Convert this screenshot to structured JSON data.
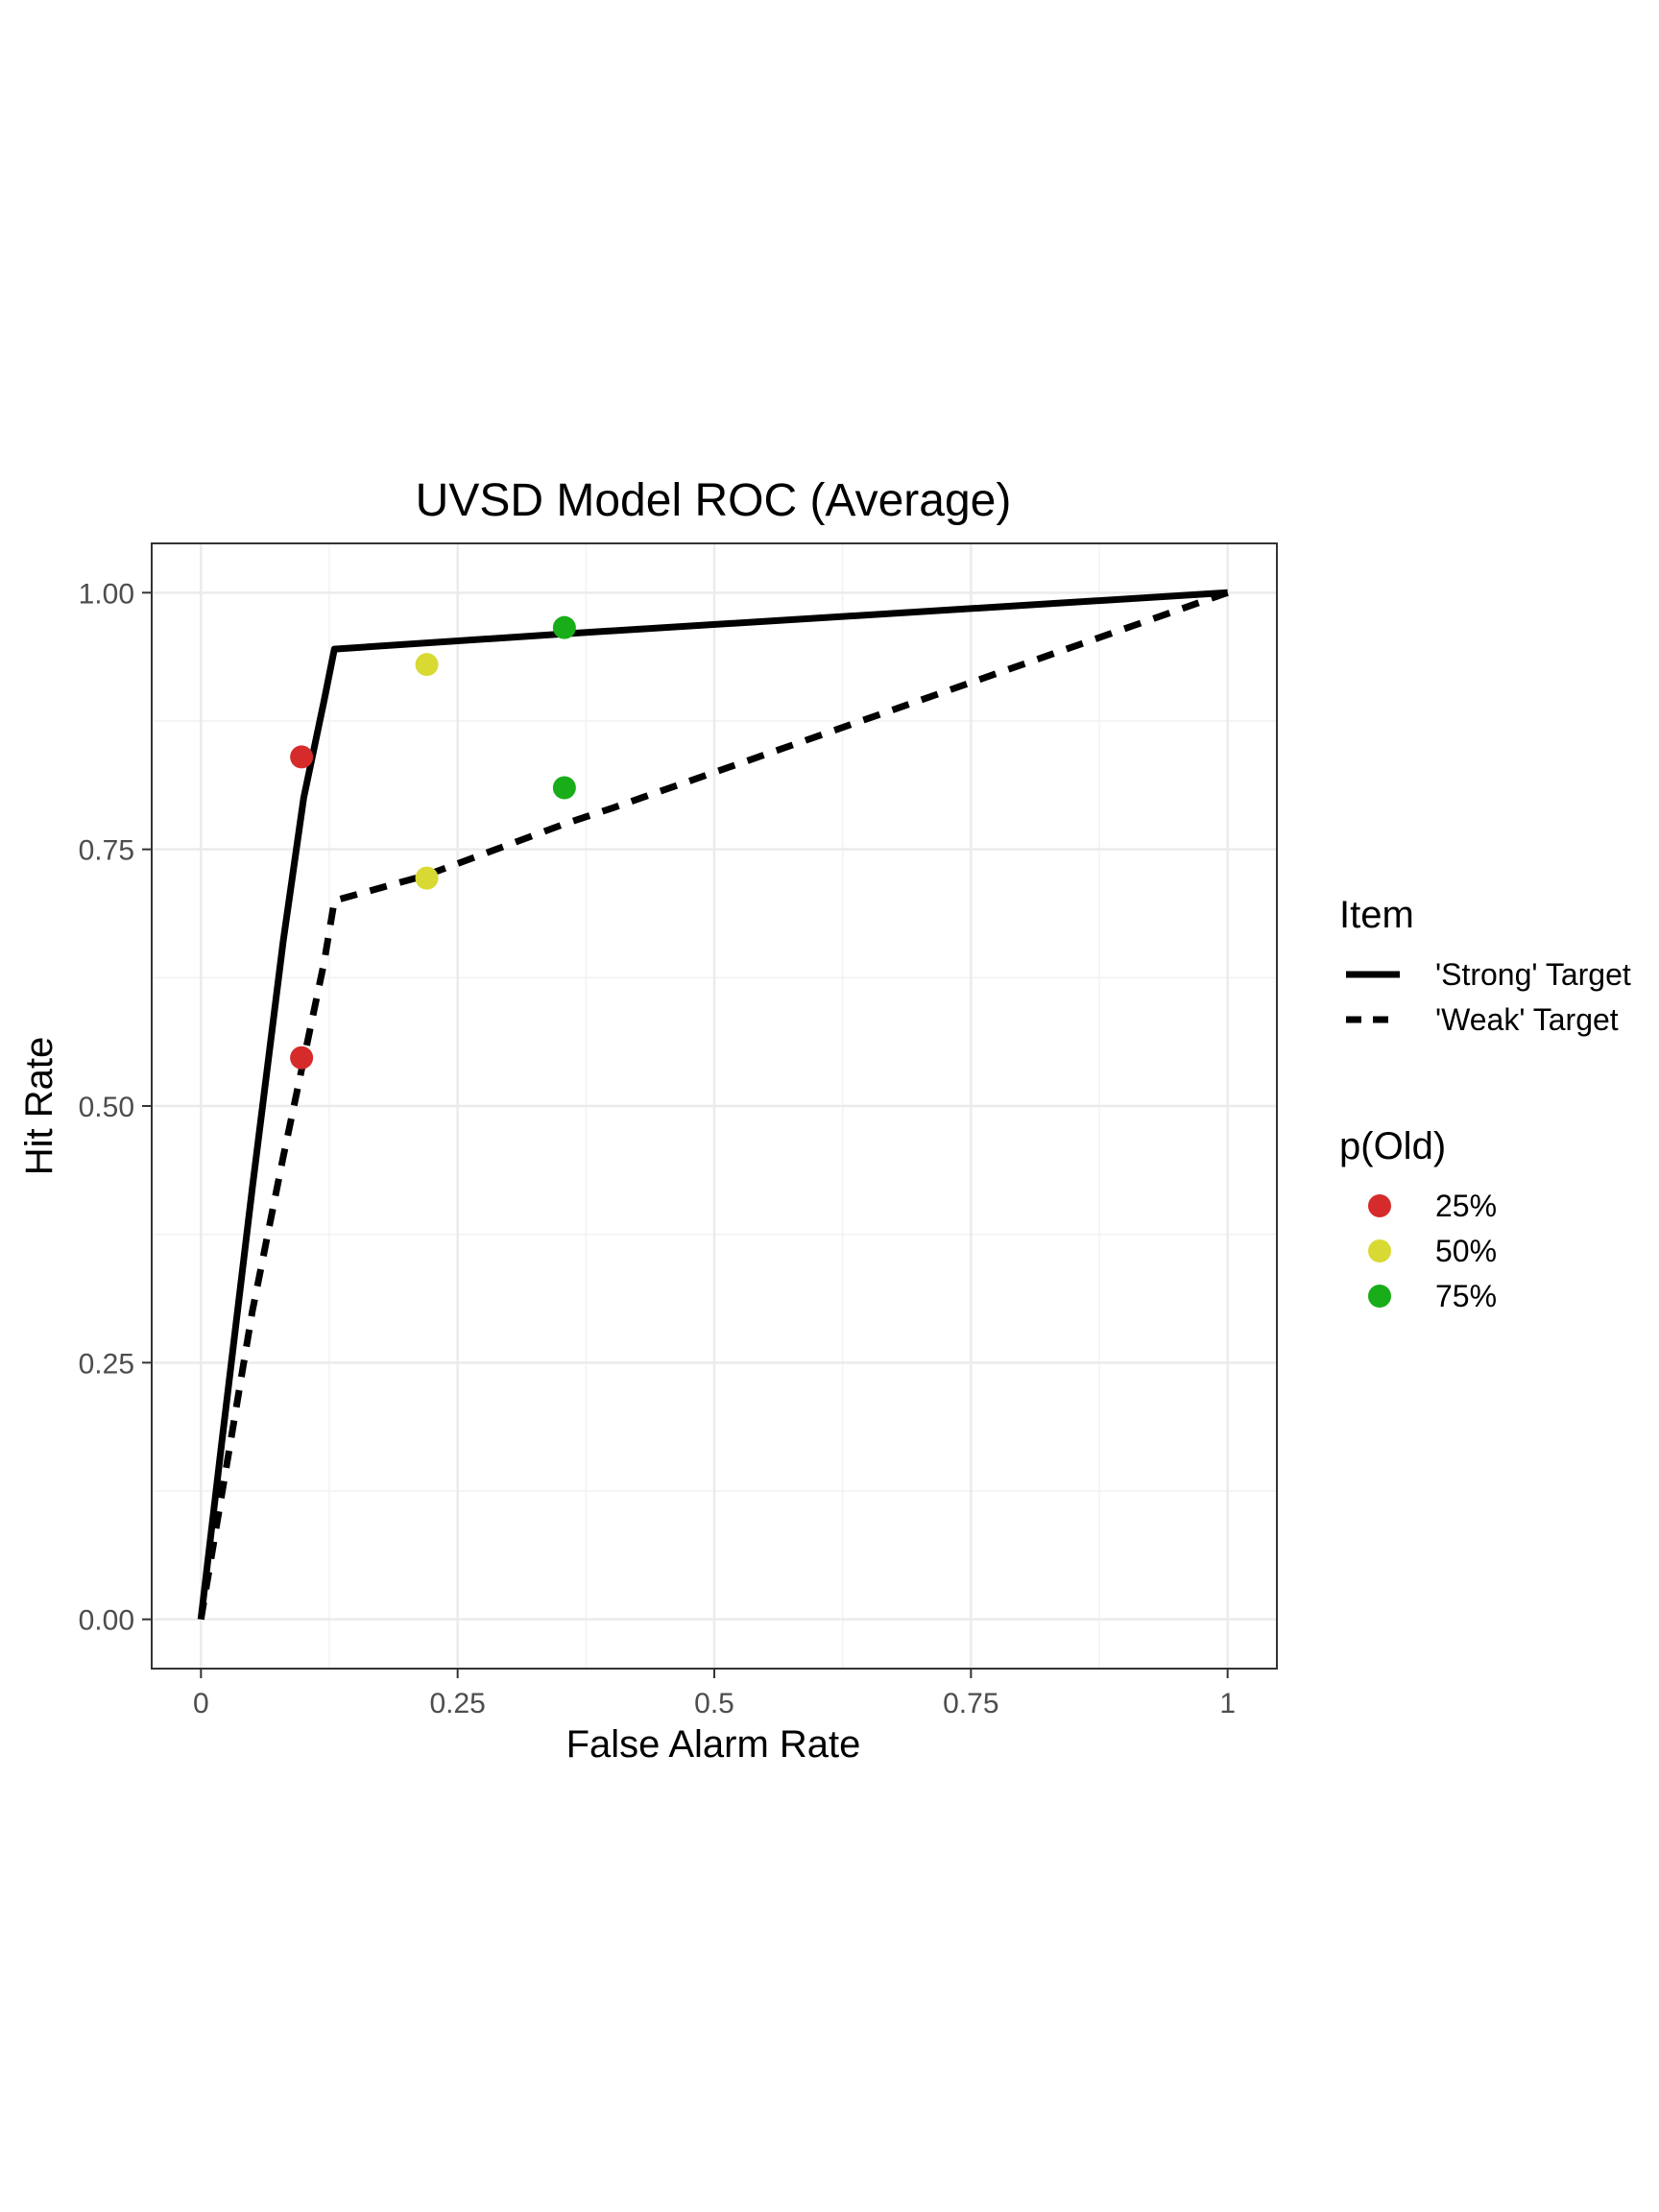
{
  "chart_data": {
    "type": "line",
    "title": "UVSD Model ROC (Average)",
    "xlabel": "False Alarm Rate",
    "ylabel": "Hit Rate",
    "xlim": [
      -0.048,
      1.048
    ],
    "ylim": [
      -0.048,
      1.048
    ],
    "x_ticks": [
      0,
      0.25,
      0.5,
      0.75,
      1
    ],
    "x_tick_labels": [
      "0",
      "0.25",
      "0.5",
      "0.75",
      "1"
    ],
    "y_ticks": [
      0,
      0.25,
      0.5,
      0.75,
      1
    ],
    "y_tick_labels": [
      "0.00",
      "0.25",
      "0.50",
      "0.75",
      "1.00"
    ],
    "grid": true,
    "legend_position": "right",
    "line_legend_title": "Item",
    "lines": [
      {
        "name": "'Strong' Target",
        "dash": "solid",
        "color": "#000000",
        "x": [
          0,
          0.02,
          0.05,
          0.08,
          0.1,
          0.12,
          0.13,
          0.355,
          1
        ],
        "y": [
          0,
          0.17,
          0.42,
          0.66,
          0.8,
          0.895,
          0.945,
          0.96,
          1
        ]
      },
      {
        "name": "'Weak' Target",
        "dash": "dashed",
        "color": "#000000",
        "x": [
          0,
          0.02,
          0.05,
          0.08,
          0.1,
          0.12,
          0.13,
          0.22,
          0.355,
          0.4,
          1
        ],
        "y": [
          0,
          0.12,
          0.3,
          0.45,
          0.545,
          0.64,
          0.7,
          0.725,
          0.775,
          0.79,
          1
        ]
      }
    ],
    "point_legend_title": "p(Old)",
    "point_groups": [
      {
        "name": "25%",
        "color": "#d62b2b",
        "x": [
          0.098,
          0.098
        ],
        "y": [
          0.84,
          0.547
        ]
      },
      {
        "name": "50%",
        "color": "#d9d934",
        "x": [
          0.22,
          0.22
        ],
        "y": [
          0.93,
          0.722
        ]
      },
      {
        "name": "75%",
        "color": "#1aad1a",
        "x": [
          0.354,
          0.354
        ],
        "y": [
          0.966,
          0.81
        ]
      }
    ]
  }
}
